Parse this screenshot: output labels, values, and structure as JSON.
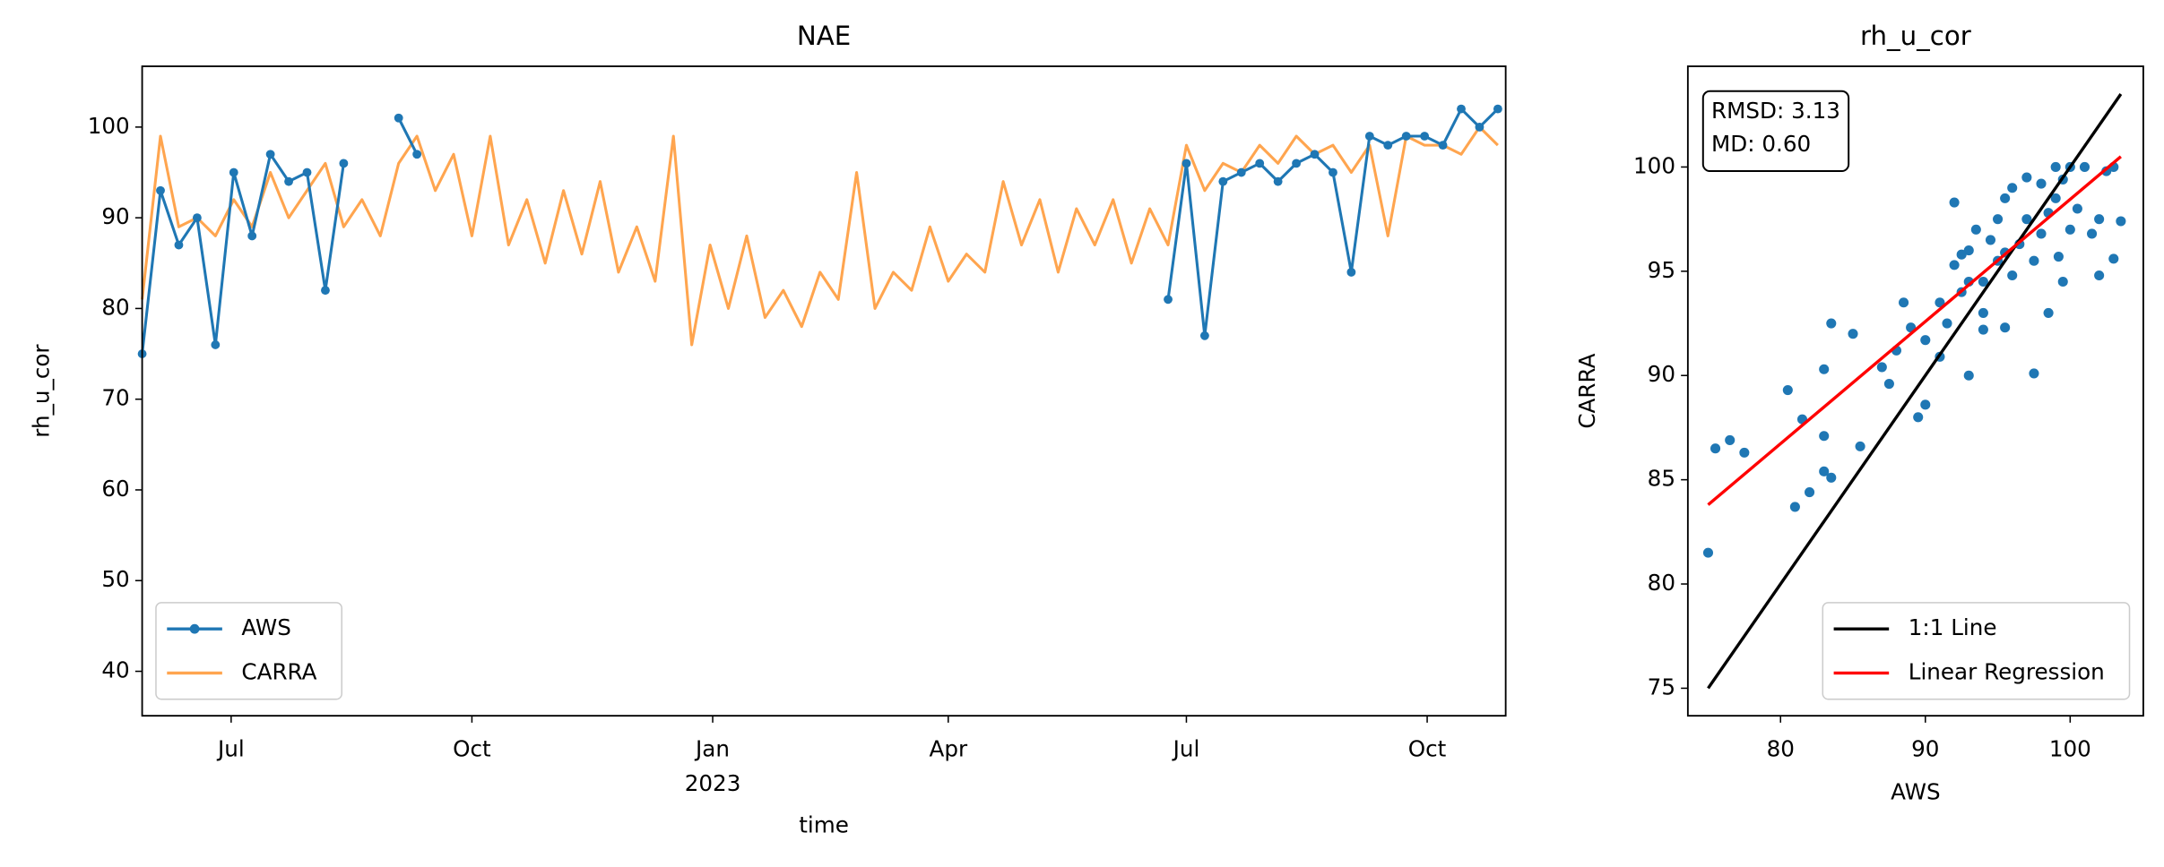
{
  "chart_data": [
    {
      "type": "line",
      "title": "NAE",
      "xlabel": "time",
      "ylabel": "rh_u_cor",
      "x": [
        "2022-05-28",
        "2022-06-04",
        "2022-06-11",
        "2022-06-18",
        "2022-06-25",
        "2022-07-02",
        "2022-07-09",
        "2022-07-16",
        "2022-07-23",
        "2022-07-30",
        "2022-08-06",
        "2022-08-13",
        "2022-08-20",
        "2022-08-27",
        "2022-09-03",
        "2022-09-10",
        "2022-09-17",
        "2022-09-24",
        "2022-10-01",
        "2022-10-08",
        "2022-10-15",
        "2022-10-22",
        "2022-10-29",
        "2022-11-05",
        "2022-11-12",
        "2022-11-19",
        "2022-11-26",
        "2022-12-03",
        "2022-12-10",
        "2022-12-17",
        "2022-12-24",
        "2022-12-31",
        "2023-01-07",
        "2023-01-14",
        "2023-01-21",
        "2023-01-28",
        "2023-02-04",
        "2023-02-11",
        "2023-02-18",
        "2023-02-25",
        "2023-03-04",
        "2023-03-11",
        "2023-03-18",
        "2023-03-25",
        "2023-04-01",
        "2023-04-08",
        "2023-04-15",
        "2023-04-22",
        "2023-04-29",
        "2023-05-06",
        "2023-05-13",
        "2023-05-20",
        "2023-05-27",
        "2023-06-03",
        "2023-06-10",
        "2023-06-17",
        "2023-06-24",
        "2023-07-01",
        "2023-07-08",
        "2023-07-15",
        "2023-07-22",
        "2023-07-29",
        "2023-08-05",
        "2023-08-12",
        "2023-08-19",
        "2023-08-26",
        "2023-09-02",
        "2023-09-09",
        "2023-09-16",
        "2023-09-23",
        "2023-09-30",
        "2023-10-07",
        "2023-10-14",
        "2023-10-21",
        "2023-10-28"
      ],
      "series": [
        {
          "name": "AWS",
          "color": "#1f77b4",
          "marker": true,
          "values": [
            75,
            93,
            87,
            90,
            76,
            95,
            88,
            97,
            94,
            95,
            82,
            96,
            null,
            null,
            101,
            97,
            null,
            null,
            null,
            null,
            null,
            null,
            null,
            null,
            null,
            null,
            null,
            null,
            null,
            null,
            null,
            null,
            null,
            null,
            null,
            null,
            null,
            null,
            null,
            null,
            null,
            null,
            null,
            null,
            null,
            null,
            null,
            null,
            null,
            null,
            null,
            null,
            null,
            null,
            null,
            null,
            81,
            96,
            77,
            94,
            95,
            96,
            94,
            96,
            97,
            95,
            84,
            99,
            98,
            99,
            99,
            98,
            102,
            100,
            102
          ]
        },
        {
          "name": "CARRA",
          "color": "#ffa54f",
          "marker": false,
          "values": [
            81,
            99,
            89,
            90,
            88,
            92,
            89,
            95,
            90,
            93,
            96,
            89,
            92,
            88,
            96,
            99,
            93,
            97,
            88,
            99,
            87,
            92,
            85,
            93,
            86,
            94,
            84,
            89,
            83,
            99,
            76,
            87,
            80,
            88,
            79,
            82,
            78,
            84,
            81,
            95,
            80,
            84,
            82,
            89,
            83,
            86,
            84,
            94,
            87,
            92,
            84,
            91,
            87,
            92,
            85,
            91,
            87,
            98,
            93,
            96,
            95,
            98,
            96,
            99,
            97,
            98,
            95,
            98,
            88,
            99,
            98,
            98,
            97,
            100,
            98
          ]
        }
      ],
      "xlim": [
        "2022-05-28",
        "2023-10-31"
      ],
      "xticks": [
        {
          "value": "2022-07-01",
          "label": "Jul"
        },
        {
          "value": "2022-10-01",
          "label": "Oct"
        },
        {
          "value": "2023-01-01",
          "label": "Jan"
        },
        {
          "value": "2023-04-01",
          "label": "Apr"
        },
        {
          "value": "2023-07-01",
          "label": "Jul"
        },
        {
          "value": "2023-10-01",
          "label": "Oct"
        }
      ],
      "xtick_sublabels": [
        {
          "value": "2023-01-01",
          "label": "2023"
        }
      ],
      "ylim": [
        35.1,
        106.7
      ],
      "yticks": [
        40,
        50,
        60,
        70,
        80,
        90,
        100
      ],
      "grid": false,
      "legend": "lower left"
    },
    {
      "type": "scatter",
      "title": "rh_u_cor",
      "xlabel": "AWS",
      "ylabel": "CARRA",
      "points": {
        "color": "#1f77b4",
        "x": [
          75,
          75.5,
          76.5,
          77.5,
          81,
          80.5,
          81.5,
          82,
          83,
          83.5,
          83,
          83,
          83.5,
          85,
          85.5,
          87,
          87.5,
          88,
          88.5,
          89,
          89.5,
          90,
          90,
          91,
          91,
          91.5,
          92,
          92,
          92.5,
          93,
          93,
          93.5,
          94,
          94,
          94.5,
          95,
          95,
          95.5,
          95.5,
          96,
          96,
          96.5,
          97,
          97,
          97.5,
          97.5,
          98,
          98,
          98.5,
          98.5,
          99,
          99,
          99.5,
          99.5,
          100,
          100,
          100.5,
          101,
          101.5,
          102,
          102,
          102.5,
          103,
          103,
          103.5,
          99.2,
          95.5,
          94,
          92.5,
          93
        ],
        "y": [
          81.5,
          86.5,
          86.9,
          86.3,
          83.7,
          89.3,
          87.9,
          84.4,
          85.4,
          85.1,
          87.1,
          90.3,
          92.5,
          92,
          86.6,
          90.4,
          89.6,
          91.2,
          93.5,
          92.3,
          88,
          88.6,
          91.7,
          93.5,
          90.9,
          92.5,
          95.3,
          98.3,
          94,
          90,
          96,
          97,
          94.5,
          92.2,
          96.5,
          95.5,
          97.5,
          98.5,
          92.3,
          94.8,
          99,
          96.3,
          97.5,
          99.5,
          90.1,
          95.5,
          96.8,
          99.2,
          97.8,
          93,
          100,
          98.5,
          99.4,
          94.5,
          100,
          97,
          98,
          100,
          96.8,
          94.8,
          97.5,
          99.8,
          95.6,
          100,
          97.4,
          95.7,
          95.9,
          93,
          95.8,
          94.5
        ]
      },
      "series": [
        {
          "name": "1:1 Line",
          "color": "#000000",
          "x": [
            75,
            103.5
          ],
          "values": [
            75,
            103.5
          ]
        },
        {
          "name": "Linear Regression",
          "color": "#ff0000",
          "x": [
            75,
            103.5
          ],
          "values": [
            83.8,
            100.5
          ]
        }
      ],
      "annotations": [
        "RMSD: 3.13",
        "MD: 0.60"
      ],
      "xlim": [
        73.6,
        105.05
      ],
      "xticks": [
        80,
        90,
        100
      ],
      "ylim": [
        73.68,
        104.83
      ],
      "yticks": [
        75,
        80,
        85,
        90,
        95,
        100
      ],
      "grid": false,
      "legend": "lower right"
    }
  ]
}
